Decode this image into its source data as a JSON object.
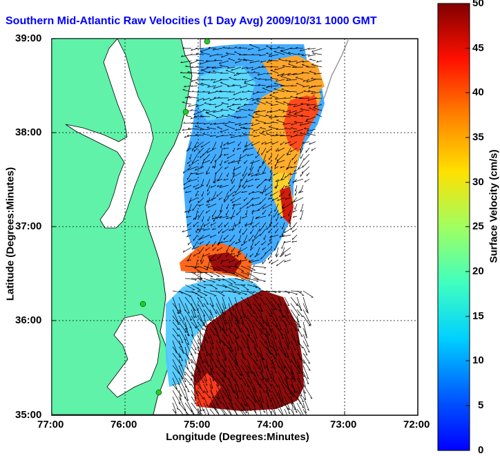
{
  "title": "Southern Mid-Atlantic Raw Velocities (1 Day Avg) 2009/10/31 1000 GMT",
  "x_axis": {
    "label": "Longitude (Degrees:Minutes)",
    "ticks": [
      "77:00",
      "76:00",
      "75:00",
      "74:00",
      "73:00",
      "72:00"
    ]
  },
  "y_axis": {
    "label": "Latitude (Degrees:Minutes)",
    "ticks": [
      "39:00",
      "38:00",
      "37:00",
      "36:00",
      "35:00"
    ]
  },
  "colorbar": {
    "label": "Surface Velocity (cm/s)",
    "ticks": [
      "50",
      "45",
      "40",
      "35",
      "30",
      "25",
      "20",
      "15",
      "10",
      "5",
      "0"
    ],
    "range": [
      0,
      50
    ],
    "colormap": "jet"
  },
  "colors": {
    "land": "#5ff2a8",
    "title": "#0000ff",
    "station": "#22cc22"
  },
  "map": {
    "lon_range": [
      -77,
      -72
    ],
    "lat_range": [
      35,
      39
    ],
    "grid": "dotted",
    "features": [
      "coastline",
      "chesapeake-bay",
      "pamlico-sound",
      "shelf-isobath",
      "hf-radar-stations",
      "velocity-field",
      "velocity-vectors"
    ]
  }
}
